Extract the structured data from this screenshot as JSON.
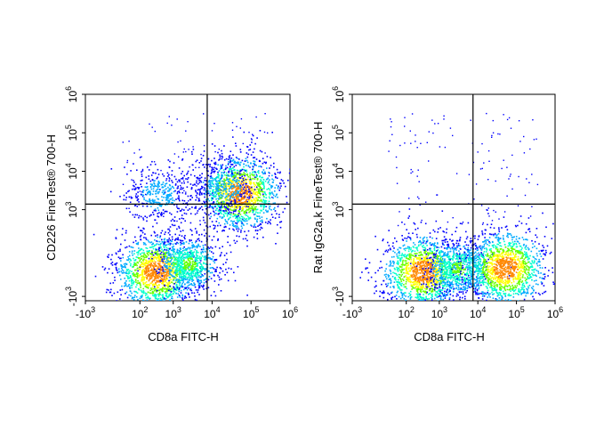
{
  "chart_data": [
    {
      "type": "scatter",
      "subtype": "flow-cytometry-density-plot",
      "xlabel": "CD8a FITC-H",
      "ylabel": "CD226 FineTest® 700-H",
      "xscale": "biexponential",
      "yscale": "biexponential",
      "x_ticks": [
        {
          "value": -1000,
          "base": "-10",
          "exp": "3"
        },
        {
          "value": 100,
          "base": "10",
          "exp": "2"
        },
        {
          "value": 1000,
          "base": "10",
          "exp": "3"
        },
        {
          "value": 10000,
          "base": "10",
          "exp": "4"
        },
        {
          "value": 100000,
          "base": "10",
          "exp": "5"
        },
        {
          "value": 1000000,
          "base": "10",
          "exp": "6"
        }
      ],
      "y_ticks": [
        {
          "value": -1000,
          "base": "-10",
          "exp": "3"
        },
        {
          "value": 1000,
          "base": "10",
          "exp": "3"
        },
        {
          "value": 10000,
          "base": "10",
          "exp": "4"
        },
        {
          "value": 100000,
          "base": "10",
          "exp": "5"
        },
        {
          "value": 1000000,
          "base": "10",
          "exp": "6"
        }
      ],
      "quadrant_gate": {
        "x": 7500,
        "y": 1400
      },
      "populations": [
        {
          "x_center": 350,
          "y_center": -200,
          "density": "high"
        },
        {
          "x_center": 400,
          "y_center": 2500,
          "density": "low"
        },
        {
          "x_center": 2500,
          "y_center": -100,
          "density": "medium"
        },
        {
          "x_center": 50000,
          "y_center": 2800,
          "density": "high"
        },
        {
          "x_center": 20000,
          "y_center": 4000,
          "density": "low"
        }
      ]
    },
    {
      "type": "scatter",
      "subtype": "flow-cytometry-density-plot",
      "xlabel": "CD8a FITC-H",
      "ylabel": "Rat IgG2a,k FineTest® 700-H",
      "xscale": "biexponential",
      "yscale": "biexponential",
      "x_ticks": [
        {
          "value": -1000,
          "base": "-10",
          "exp": "3"
        },
        {
          "value": 100,
          "base": "10",
          "exp": "2"
        },
        {
          "value": 1000,
          "base": "10",
          "exp": "3"
        },
        {
          "value": 10000,
          "base": "10",
          "exp": "4"
        },
        {
          "value": 100000,
          "base": "10",
          "exp": "5"
        },
        {
          "value": 1000000,
          "base": "10",
          "exp": "6"
        }
      ],
      "y_ticks": [
        {
          "value": -1000,
          "base": "-10",
          "exp": "3"
        },
        {
          "value": 1000,
          "base": "10",
          "exp": "3"
        },
        {
          "value": 10000,
          "base": "10",
          "exp": "4"
        },
        {
          "value": 100000,
          "base": "10",
          "exp": "5"
        },
        {
          "value": 1000000,
          "base": "10",
          "exp": "6"
        }
      ],
      "quadrant_gate": {
        "x": 7500,
        "y": 1400
      },
      "populations": [
        {
          "x_center": 350,
          "y_center": -200,
          "density": "high"
        },
        {
          "x_center": 3000,
          "y_center": -150,
          "density": "medium"
        },
        {
          "x_center": 50000,
          "y_center": -150,
          "density": "high"
        }
      ]
    }
  ],
  "colors": {
    "density_scale": [
      "#0000ff",
      "#00aaff",
      "#00ffcc",
      "#66ff00",
      "#ffff00",
      "#ff8800",
      "#ff0000"
    ],
    "axis": "#000000",
    "background": "#ffffff"
  }
}
